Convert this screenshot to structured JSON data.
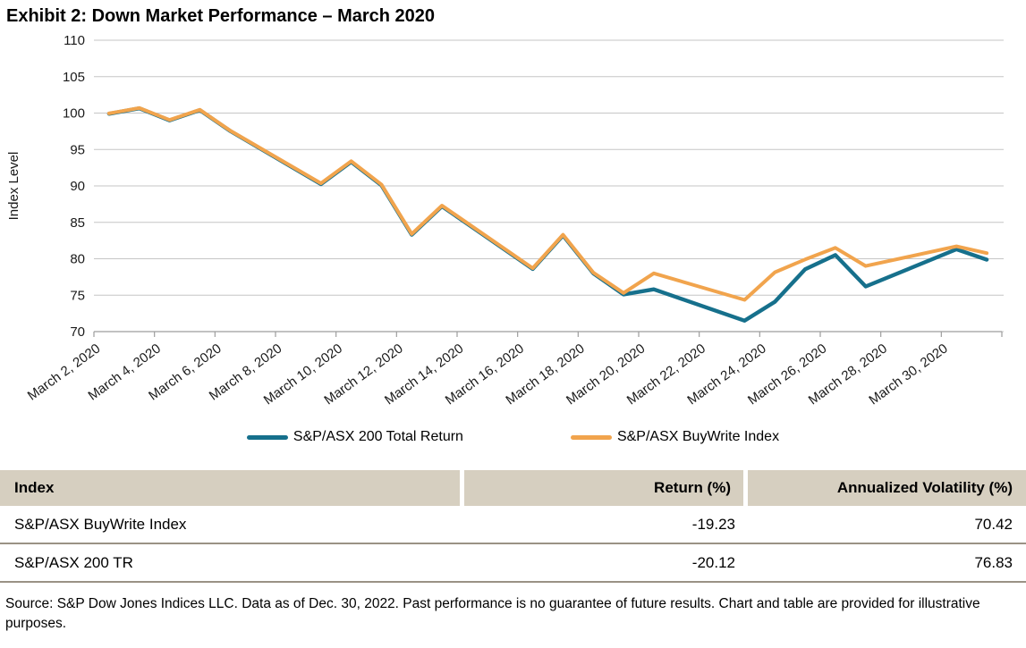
{
  "title": "Exhibit 2: Down Market Performance – March 2020",
  "chart_data": {
    "type": "line",
    "title": "Exhibit 2: Down Market Performance – March 2020",
    "xlabel": "",
    "ylabel": "Index Level",
    "ylim": [
      70,
      110
    ],
    "ytick_step": 5,
    "grid": "horizontal",
    "legend_position": "bottom",
    "x_unit": "date (March 2020, day of month; weekends interpolated)",
    "x_days": [
      2,
      3,
      4,
      5,
      6,
      9,
      10,
      11,
      12,
      13,
      16,
      17,
      18,
      19,
      20,
      23,
      24,
      25,
      26,
      27,
      30,
      31
    ],
    "x_tick_days": [
      2,
      4,
      6,
      8,
      10,
      12,
      14,
      16,
      18,
      20,
      22,
      24,
      26,
      28,
      30
    ],
    "x_tick_labels": [
      "March 2, 2020",
      "March 4, 2020",
      "March 6, 2020",
      "March 8, 2020",
      "March 10, 2020",
      "March 12, 2020",
      "March 14, 2020",
      "March 16, 2020",
      "March 18, 2020",
      "March 20, 2020",
      "March 22, 2020",
      "March 24, 2020",
      "March 26, 2020",
      "March 28, 2020",
      "March 30, 2020"
    ],
    "y_tick_labels": [
      "70",
      "75",
      "80",
      "85",
      "90",
      "95",
      "100",
      "105",
      "110"
    ],
    "series": [
      {
        "name": "S&P/ASX 200 Total Return",
        "color": "#16708c",
        "values": [
          99.9,
          100.65,
          99.0,
          100.4,
          97.55,
          90.25,
          93.3,
          90.1,
          83.3,
          87.2,
          78.6,
          83.2,
          78.0,
          75.1,
          75.8,
          71.5,
          74.1,
          78.55,
          80.5,
          76.2,
          81.3,
          79.88
        ]
      },
      {
        "name": "S&P/ASX BuyWrite Index",
        "color": "#f1a44d",
        "values": [
          99.95,
          100.7,
          99.05,
          100.45,
          97.6,
          90.35,
          93.4,
          90.2,
          83.4,
          87.3,
          78.7,
          83.3,
          78.1,
          75.3,
          78.0,
          74.35,
          78.15,
          79.9,
          81.5,
          79.0,
          81.7,
          80.77
        ]
      }
    ]
  },
  "colors": {
    "teal_line": "#16708c",
    "orange_line": "#f1a44d",
    "gridline": "#c6c6c6",
    "axis": "#9d9d9d",
    "table_header_bg": "#d6cfc0",
    "table_row_border": "#9a9285"
  },
  "table": {
    "headers": [
      "Index",
      "Return (%)",
      "Annualized Volatility (%)"
    ],
    "rows": [
      {
        "index": "S&P/ASX BuyWrite Index",
        "return_pct": "-19.23",
        "annualized_volatility_pct": "70.42"
      },
      {
        "index": "S&P/ASX 200 TR",
        "return_pct": "-20.12",
        "annualized_volatility_pct": "76.83"
      }
    ]
  },
  "footnote": "Source: S&P Dow Jones Indices LLC. Data as of Dec. 30, 2022. Past performance is no guarantee of future results. Chart and table are provided for illustrative purposes."
}
